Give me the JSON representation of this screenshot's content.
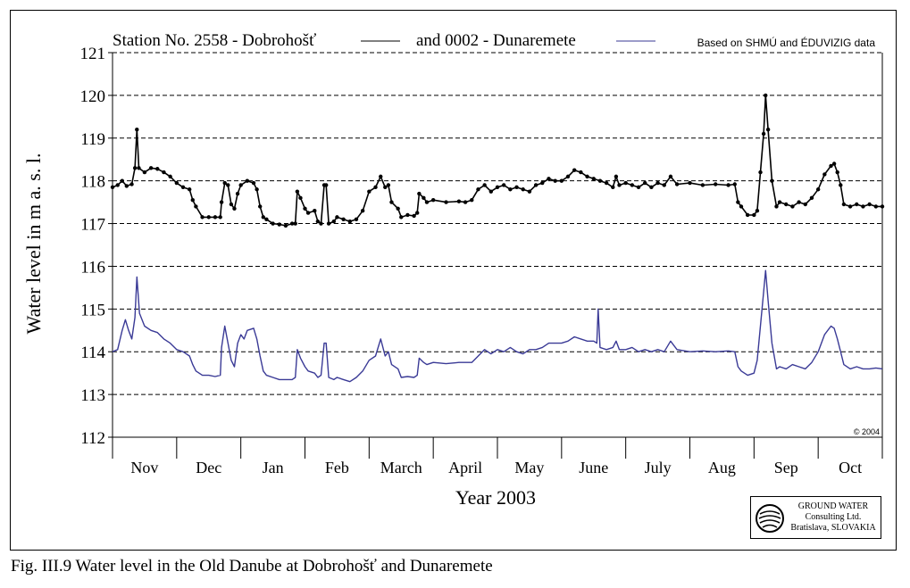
{
  "figure_caption": "Fig. III.9  Water level in the Old Danube at Dobrohošť and Dunaremete",
  "logo": {
    "line1": "GROUND WATER",
    "line2": "Consulting Ltd.",
    "line3": "Bratislava, SLOVAKIA"
  },
  "colors": {
    "series_dobrohost": "#000000",
    "series_dunaremete": "#3a3a96",
    "grid": "#000000"
  },
  "chart_data": {
    "type": "line",
    "title_series_1": "Station No. 2558 - Dobrohošť",
    "title_series_2": "and 0002 - Dunaremete",
    "source_note": "Based on SHMÚ and ÉDUVIZIG data",
    "copyright": "© 2004",
    "xlabel": "Year 2003",
    "ylabel": "Water level in m a. s. l.",
    "ylim": [
      112,
      121
    ],
    "yticks": [
      112,
      113,
      114,
      115,
      116,
      117,
      118,
      119,
      120,
      121
    ],
    "grid": "horizontal dashed",
    "x_unit": "month index (0 = start of Nov 2002)",
    "xlim": [
      0,
      12
    ],
    "months": [
      "Nov",
      "Dec",
      "Jan",
      "Feb",
      "March",
      "April",
      "May",
      "June",
      "July",
      "Aug",
      "Sep",
      "Oct"
    ],
    "series": [
      {
        "name": "Dobrohošť",
        "marker": "dot",
        "points": [
          [
            0.0,
            117.85
          ],
          [
            0.08,
            117.9
          ],
          [
            0.15,
            118.0
          ],
          [
            0.22,
            117.88
          ],
          [
            0.3,
            117.92
          ],
          [
            0.35,
            118.3
          ],
          [
            0.38,
            119.2
          ],
          [
            0.41,
            118.3
          ],
          [
            0.5,
            118.2
          ],
          [
            0.6,
            118.3
          ],
          [
            0.7,
            118.28
          ],
          [
            0.8,
            118.2
          ],
          [
            0.9,
            118.1
          ],
          [
            1.0,
            117.95
          ],
          [
            1.1,
            117.85
          ],
          [
            1.2,
            117.8
          ],
          [
            1.25,
            117.55
          ],
          [
            1.3,
            117.4
          ],
          [
            1.4,
            117.15
          ],
          [
            1.5,
            117.15
          ],
          [
            1.6,
            117.15
          ],
          [
            1.68,
            117.15
          ],
          [
            1.7,
            117.5
          ],
          [
            1.75,
            117.95
          ],
          [
            1.8,
            117.9
          ],
          [
            1.85,
            117.45
          ],
          [
            1.9,
            117.35
          ],
          [
            1.95,
            117.7
          ],
          [
            2.0,
            117.9
          ],
          [
            2.1,
            118.0
          ],
          [
            2.2,
            117.95
          ],
          [
            2.25,
            117.8
          ],
          [
            2.3,
            117.4
          ],
          [
            2.35,
            117.15
          ],
          [
            2.4,
            117.1
          ],
          [
            2.5,
            117.0
          ],
          [
            2.6,
            116.98
          ],
          [
            2.7,
            116.95
          ],
          [
            2.8,
            117.0
          ],
          [
            2.85,
            117.0
          ],
          [
            2.88,
            117.75
          ],
          [
            2.93,
            117.6
          ],
          [
            3.0,
            117.35
          ],
          [
            3.05,
            117.25
          ],
          [
            3.15,
            117.3
          ],
          [
            3.2,
            117.05
          ],
          [
            3.25,
            117.0
          ],
          [
            3.3,
            117.9
          ],
          [
            3.33,
            117.9
          ],
          [
            3.37,
            117.0
          ],
          [
            3.45,
            117.05
          ],
          [
            3.5,
            117.15
          ],
          [
            3.6,
            117.1
          ],
          [
            3.7,
            117.05
          ],
          [
            3.8,
            117.1
          ],
          [
            3.9,
            117.3
          ],
          [
            4.0,
            117.75
          ],
          [
            4.1,
            117.85
          ],
          [
            4.18,
            118.1
          ],
          [
            4.25,
            117.85
          ],
          [
            4.3,
            117.9
          ],
          [
            4.35,
            117.5
          ],
          [
            4.45,
            117.35
          ],
          [
            4.5,
            117.15
          ],
          [
            4.6,
            117.2
          ],
          [
            4.7,
            117.18
          ],
          [
            4.75,
            117.25
          ],
          [
            4.78,
            117.7
          ],
          [
            4.85,
            117.6
          ],
          [
            4.9,
            117.5
          ],
          [
            5.0,
            117.55
          ],
          [
            5.2,
            117.5
          ],
          [
            5.4,
            117.52
          ],
          [
            5.5,
            117.5
          ],
          [
            5.6,
            117.55
          ],
          [
            5.7,
            117.8
          ],
          [
            5.8,
            117.9
          ],
          [
            5.9,
            117.75
          ],
          [
            6.0,
            117.85
          ],
          [
            6.1,
            117.9
          ],
          [
            6.2,
            117.8
          ],
          [
            6.3,
            117.85
          ],
          [
            6.4,
            117.8
          ],
          [
            6.5,
            117.75
          ],
          [
            6.6,
            117.9
          ],
          [
            6.7,
            117.95
          ],
          [
            6.8,
            118.05
          ],
          [
            6.9,
            118.0
          ],
          [
            7.0,
            118.0
          ],
          [
            7.1,
            118.1
          ],
          [
            7.2,
            118.25
          ],
          [
            7.3,
            118.2
          ],
          [
            7.4,
            118.1
          ],
          [
            7.5,
            118.05
          ],
          [
            7.6,
            118.0
          ],
          [
            7.7,
            117.95
          ],
          [
            7.8,
            117.85
          ],
          [
            7.85,
            118.1
          ],
          [
            7.9,
            117.9
          ],
          [
            8.0,
            117.95
          ],
          [
            8.1,
            117.9
          ],
          [
            8.2,
            117.85
          ],
          [
            8.3,
            117.95
          ],
          [
            8.4,
            117.85
          ],
          [
            8.5,
            117.95
          ],
          [
            8.6,
            117.9
          ],
          [
            8.7,
            118.1
          ],
          [
            8.8,
            117.92
          ],
          [
            9.0,
            117.95
          ],
          [
            9.2,
            117.9
          ],
          [
            9.4,
            117.92
          ],
          [
            9.6,
            117.9
          ],
          [
            9.7,
            117.92
          ],
          [
            9.75,
            117.5
          ],
          [
            9.8,
            117.4
          ],
          [
            9.9,
            117.2
          ],
          [
            10.0,
            117.2
          ],
          [
            10.05,
            117.3
          ],
          [
            10.1,
            118.2
          ],
          [
            10.15,
            119.1
          ],
          [
            10.18,
            120.0
          ],
          [
            10.22,
            119.2
          ],
          [
            10.28,
            118.0
          ],
          [
            10.35,
            117.4
          ],
          [
            10.4,
            117.5
          ],
          [
            10.5,
            117.45
          ],
          [
            10.6,
            117.4
          ],
          [
            10.7,
            117.5
          ],
          [
            10.8,
            117.45
          ],
          [
            10.9,
            117.6
          ],
          [
            11.0,
            117.8
          ],
          [
            11.1,
            118.15
          ],
          [
            11.2,
            118.35
          ],
          [
            11.25,
            118.4
          ],
          [
            11.3,
            118.2
          ],
          [
            11.35,
            117.9
          ],
          [
            11.4,
            117.45
          ],
          [
            11.5,
            117.4
          ],
          [
            11.6,
            117.45
          ],
          [
            11.7,
            117.4
          ],
          [
            11.8,
            117.45
          ],
          [
            11.9,
            117.4
          ],
          [
            12.0,
            117.4
          ]
        ]
      },
      {
        "name": "Dunaremete",
        "marker": "none",
        "points": [
          [
            0.0,
            114.0
          ],
          [
            0.08,
            114.05
          ],
          [
            0.15,
            114.5
          ],
          [
            0.2,
            114.75
          ],
          [
            0.25,
            114.5
          ],
          [
            0.3,
            114.3
          ],
          [
            0.35,
            114.8
          ],
          [
            0.38,
            115.75
          ],
          [
            0.42,
            114.9
          ],
          [
            0.5,
            114.6
          ],
          [
            0.6,
            114.5
          ],
          [
            0.7,
            114.45
          ],
          [
            0.8,
            114.3
          ],
          [
            0.9,
            114.2
          ],
          [
            1.0,
            114.05
          ],
          [
            1.1,
            114.0
          ],
          [
            1.2,
            113.9
          ],
          [
            1.25,
            113.7
          ],
          [
            1.3,
            113.55
          ],
          [
            1.4,
            113.45
          ],
          [
            1.5,
            113.45
          ],
          [
            1.6,
            113.42
          ],
          [
            1.68,
            113.45
          ],
          [
            1.7,
            114.1
          ],
          [
            1.75,
            114.6
          ],
          [
            1.8,
            114.2
          ],
          [
            1.85,
            113.8
          ],
          [
            1.9,
            113.65
          ],
          [
            1.95,
            114.2
          ],
          [
            2.0,
            114.4
          ],
          [
            2.05,
            114.3
          ],
          [
            2.1,
            114.5
          ],
          [
            2.2,
            114.55
          ],
          [
            2.25,
            114.3
          ],
          [
            2.3,
            113.9
          ],
          [
            2.35,
            113.55
          ],
          [
            2.4,
            113.45
          ],
          [
            2.5,
            113.4
          ],
          [
            2.6,
            113.35
          ],
          [
            2.7,
            113.35
          ],
          [
            2.8,
            113.35
          ],
          [
            2.85,
            113.4
          ],
          [
            2.88,
            114.05
          ],
          [
            2.93,
            113.85
          ],
          [
            3.0,
            113.65
          ],
          [
            3.05,
            113.55
          ],
          [
            3.15,
            113.5
          ],
          [
            3.2,
            113.4
          ],
          [
            3.25,
            113.45
          ],
          [
            3.3,
            114.2
          ],
          [
            3.33,
            114.2
          ],
          [
            3.37,
            113.4
          ],
          [
            3.45,
            113.35
          ],
          [
            3.5,
            113.4
          ],
          [
            3.6,
            113.35
          ],
          [
            3.7,
            113.3
          ],
          [
            3.8,
            113.4
          ],
          [
            3.9,
            113.55
          ],
          [
            4.0,
            113.8
          ],
          [
            4.1,
            113.9
          ],
          [
            4.18,
            114.3
          ],
          [
            4.25,
            113.9
          ],
          [
            4.3,
            114.0
          ],
          [
            4.35,
            113.7
          ],
          [
            4.45,
            113.6
          ],
          [
            4.5,
            113.4
          ],
          [
            4.6,
            113.42
          ],
          [
            4.7,
            113.4
          ],
          [
            4.75,
            113.45
          ],
          [
            4.78,
            113.85
          ],
          [
            4.85,
            113.75
          ],
          [
            4.9,
            113.7
          ],
          [
            5.0,
            113.75
          ],
          [
            5.2,
            113.72
          ],
          [
            5.4,
            113.75
          ],
          [
            5.6,
            113.75
          ],
          [
            5.7,
            113.9
          ],
          [
            5.8,
            114.05
          ],
          [
            5.9,
            113.95
          ],
          [
            6.0,
            114.05
          ],
          [
            6.1,
            114.0
          ],
          [
            6.2,
            114.1
          ],
          [
            6.3,
            114.0
          ],
          [
            6.4,
            113.95
          ],
          [
            6.5,
            114.05
          ],
          [
            6.6,
            114.05
          ],
          [
            6.7,
            114.1
          ],
          [
            6.8,
            114.2
          ],
          [
            6.9,
            114.2
          ],
          [
            7.0,
            114.2
          ],
          [
            7.1,
            114.25
          ],
          [
            7.2,
            114.35
          ],
          [
            7.3,
            114.3
          ],
          [
            7.4,
            114.25
          ],
          [
            7.5,
            114.25
          ],
          [
            7.55,
            114.2
          ],
          [
            7.57,
            115.0
          ],
          [
            7.6,
            114.1
          ],
          [
            7.7,
            114.05
          ],
          [
            7.8,
            114.1
          ],
          [
            7.85,
            114.25
          ],
          [
            7.9,
            114.05
          ],
          [
            8.0,
            114.05
          ],
          [
            8.1,
            114.1
          ],
          [
            8.2,
            114.0
          ],
          [
            8.3,
            114.05
          ],
          [
            8.4,
            114.0
          ],
          [
            8.5,
            114.05
          ],
          [
            8.6,
            114.0
          ],
          [
            8.7,
            114.25
          ],
          [
            8.8,
            114.05
          ],
          [
            9.0,
            114.0
          ],
          [
            9.2,
            114.02
          ],
          [
            9.4,
            114.0
          ],
          [
            9.6,
            114.02
          ],
          [
            9.7,
            114.0
          ],
          [
            9.75,
            113.65
          ],
          [
            9.8,
            113.55
          ],
          [
            9.9,
            113.45
          ],
          [
            10.0,
            113.5
          ],
          [
            10.05,
            113.8
          ],
          [
            10.1,
            114.6
          ],
          [
            10.15,
            115.4
          ],
          [
            10.18,
            115.9
          ],
          [
            10.22,
            115.2
          ],
          [
            10.28,
            114.2
          ],
          [
            10.35,
            113.6
          ],
          [
            10.4,
            113.65
          ],
          [
            10.5,
            113.6
          ],
          [
            10.6,
            113.7
          ],
          [
            10.7,
            113.65
          ],
          [
            10.8,
            113.6
          ],
          [
            10.9,
            113.75
          ],
          [
            11.0,
            114.0
          ],
          [
            11.1,
            114.4
          ],
          [
            11.2,
            114.6
          ],
          [
            11.25,
            114.55
          ],
          [
            11.3,
            114.3
          ],
          [
            11.35,
            114.0
          ],
          [
            11.4,
            113.7
          ],
          [
            11.5,
            113.6
          ],
          [
            11.6,
            113.65
          ],
          [
            11.7,
            113.6
          ],
          [
            11.8,
            113.6
          ],
          [
            11.9,
            113.62
          ],
          [
            12.0,
            113.6
          ]
        ]
      }
    ]
  }
}
